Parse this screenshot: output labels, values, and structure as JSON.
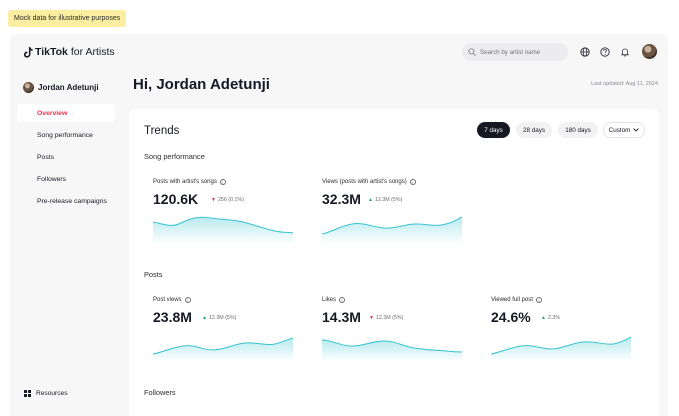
{
  "banner": "Mock data for illustrative purposes",
  "header": {
    "brand_bold": "TikTok",
    "brand_light": "for Artists",
    "search_placeholder": "Search by artist name"
  },
  "sidebar": {
    "user": "Jordan Adetunji",
    "items": [
      {
        "label": "Overview",
        "active": true
      },
      {
        "label": "Song performance",
        "active": false
      },
      {
        "label": "Posts",
        "active": false
      },
      {
        "label": "Followers",
        "active": false
      },
      {
        "label": "Pre-release campaigns",
        "active": false
      }
    ],
    "resources": "Resources"
  },
  "main": {
    "greeting": "Hi, Jordan Adetunji",
    "last_updated": "Last updated: Aug 11, 2024",
    "trends_title": "Trends",
    "ranges": [
      "7 days",
      "28 days",
      "180 days",
      "Custom"
    ],
    "selected_range": "7 days",
    "sections": {
      "song_performance": "Song performance",
      "posts": "Posts",
      "followers": "Followers"
    },
    "cards": {
      "posts_with_songs": {
        "label": "Posts with artist's songs",
        "value": "120.6K",
        "change": "256 (0.1%)",
        "trend": "down"
      },
      "views_posts": {
        "label": "Views (posts with artist's songs)",
        "value": "32.3M",
        "change": "12.3M (5%)",
        "trend": "up"
      },
      "post_views": {
        "label": "Post views",
        "value": "23.8M",
        "change": "12.3M (5%)",
        "trend": "up"
      },
      "likes": {
        "label": "Likes",
        "value": "14.3M",
        "change": "12.3M (5%)",
        "trend": "down"
      },
      "viewed_full": {
        "label": "Viewed full post",
        "value": "24.6%",
        "change": "2.3%",
        "trend": "up"
      }
    }
  },
  "colors": {
    "accent": "#e8324a",
    "up": "#1aa56b",
    "line": "#36c3cf",
    "active_range": "#161823"
  },
  "icons": [
    "tiktok-logo-icon",
    "search-icon",
    "globe-icon",
    "help-icon",
    "bell-icon",
    "grid-icon",
    "info-icon"
  ]
}
